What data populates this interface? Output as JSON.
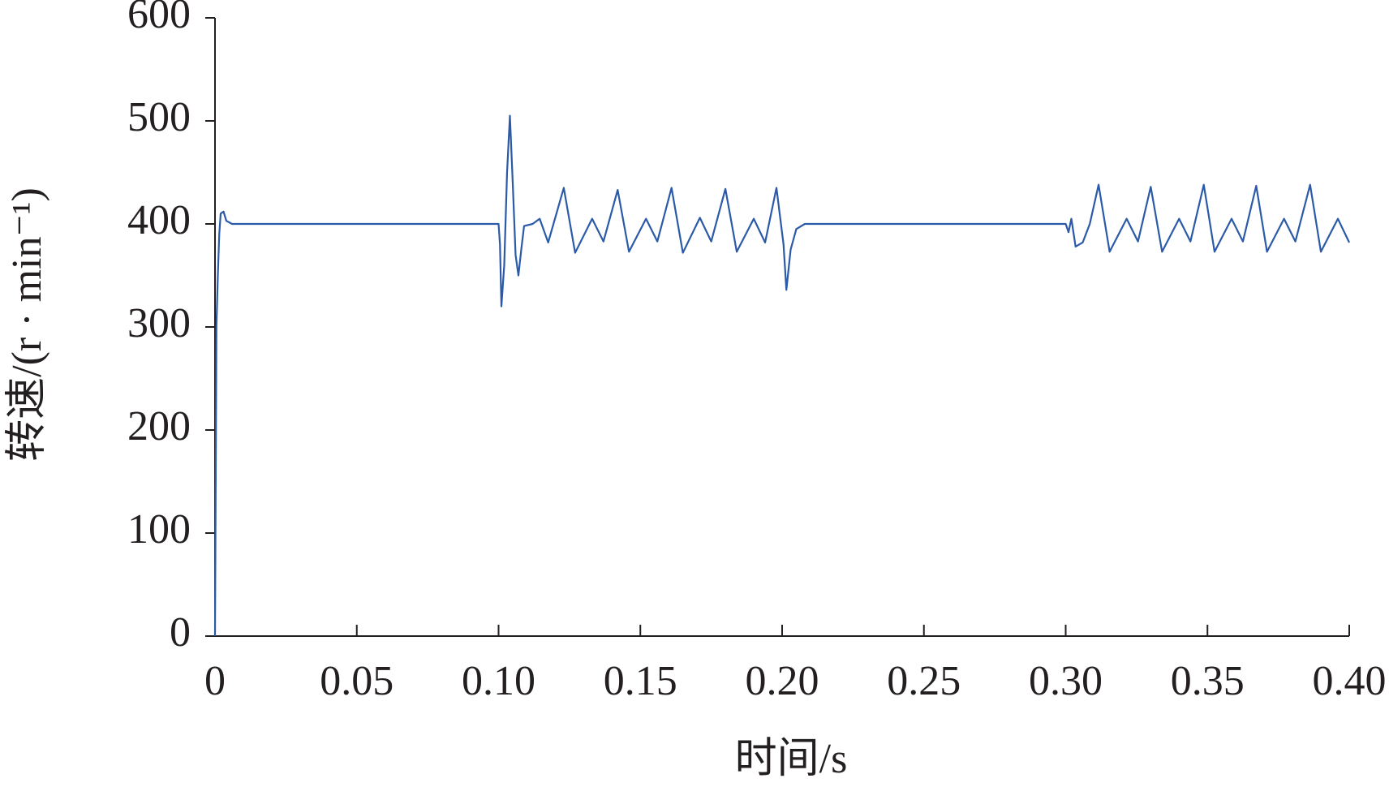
{
  "chart_data": {
    "type": "line",
    "xlabel": "时间/s",
    "ylabel": "转速/(r · min⁻¹)",
    "color": "#2b5aa8",
    "x": [
      0,
      0.0005,
      0.001,
      0.0015,
      0.002,
      0.003,
      0.004,
      0.006,
      0.01,
      0.05,
      0.1,
      0.1005,
      0.101,
      0.102,
      0.103,
      0.104,
      0.105,
      0.106,
      0.107,
      0.108,
      0.109,
      0.112,
      0.1145,
      0.1175,
      0.123,
      0.127,
      0.133,
      0.137,
      0.142,
      0.146,
      0.152,
      0.156,
      0.161,
      0.165,
      0.171,
      0.175,
      0.18,
      0.184,
      0.19,
      0.194,
      0.198,
      0.2005,
      0.2015,
      0.203,
      0.205,
      0.208,
      0.25,
      0.3,
      0.301,
      0.302,
      0.3035,
      0.306,
      0.3085,
      0.3116,
      0.3155,
      0.3215,
      0.3255,
      0.33,
      0.334,
      0.34,
      0.344,
      0.3487,
      0.3525,
      0.3585,
      0.3625,
      0.3672,
      0.371,
      0.377,
      0.381,
      0.3862,
      0.39,
      0.396,
      0.4
    ],
    "values": [
      0,
      300,
      350,
      390,
      410,
      412,
      403,
      400,
      400,
      400,
      400,
      380,
      320,
      360,
      450,
      505,
      440,
      370,
      350,
      375,
      398,
      400,
      405,
      382,
      435,
      372,
      405,
      383,
      433,
      373,
      405,
      383,
      435,
      372,
      406,
      383,
      434,
      373,
      405,
      382,
      435,
      380,
      336,
      375,
      395,
      400,
      400,
      400,
      392,
      405,
      378,
      382,
      400,
      438,
      373,
      405,
      383,
      436,
      373,
      405,
      383,
      438,
      373,
      405,
      383,
      437,
      373,
      405,
      383,
      438,
      373,
      405,
      382
    ],
    "xlim": [
      0,
      0.4
    ],
    "ylim": [
      0,
      600
    ],
    "xticks": [
      0,
      0.05,
      {
        "value": 0.1,
        "label": "0.10"
      },
      0.15,
      {
        "value": 0.2,
        "label": "0.20"
      },
      0.25,
      {
        "value": 0.3,
        "label": "0.30"
      },
      0.35,
      {
        "value": 0.4,
        "label": "0.40"
      }
    ],
    "yticks": [
      0,
      100,
      200,
      300,
      400,
      500,
      600
    ]
  }
}
